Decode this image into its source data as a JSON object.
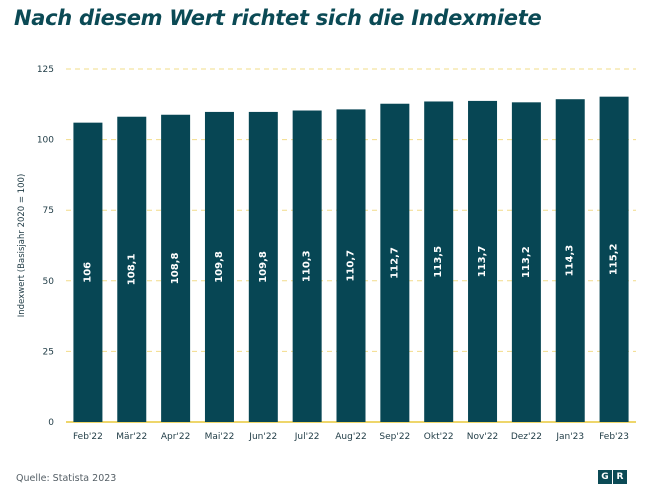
{
  "title": "Nach diesem Wert richtet sich die Indexmiete",
  "source": "Quelle: Statista 2023",
  "logo": {
    "left": "G",
    "right": "R"
  },
  "colors": {
    "bar": "#074654",
    "title": "#0b4a55",
    "grid": "#f2dc8a",
    "baseline": "#e8c93a",
    "axis_text": "#1f3b45"
  },
  "chart_data": {
    "type": "bar",
    "ylabel": "Indexwert (Basisjahr 2020 = 100)",
    "ylim": [
      0,
      125
    ],
    "yticks": [
      0,
      25,
      50,
      75,
      100,
      125
    ],
    "grid": "horizontal dashed",
    "categories": [
      "Feb'22",
      "Mär'22",
      "Apr'22",
      "Mai'22",
      "Jun'22",
      "Jul'22",
      "Aug'22",
      "Sep'22",
      "Okt'22",
      "Nov'22",
      "Dez'22",
      "Jan'23",
      "Feb'23"
    ],
    "values": [
      106,
      108.1,
      108.8,
      109.8,
      109.8,
      110.3,
      110.7,
      112.7,
      113.5,
      113.7,
      113.2,
      114.3,
      115.2
    ],
    "data_labels": [
      "106",
      "108,1",
      "108,8",
      "109,8",
      "109,8",
      "110,3",
      "110,7",
      "112,7",
      "113,5",
      "113,7",
      "113,2",
      "114,3",
      "115,2"
    ]
  }
}
